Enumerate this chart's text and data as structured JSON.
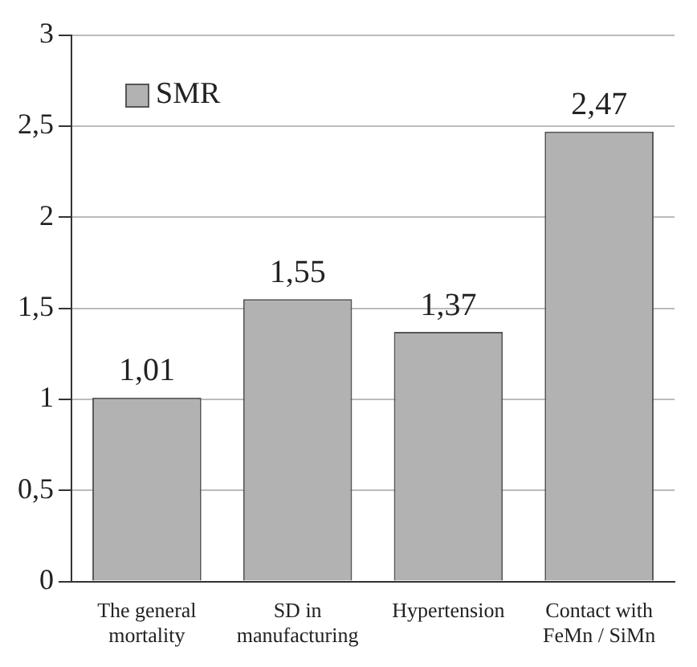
{
  "chart_data": {
    "type": "bar",
    "categories": [
      "The general mortality",
      "SD in manufacturing",
      "Hypertension",
      "Contact with FeMn / SiMn"
    ],
    "series": [
      {
        "name": "SMR",
        "color": "#b2b2b2",
        "values": [
          1.01,
          1.55,
          1.37,
          2.47
        ],
        "value_labels": [
          "1,01",
          "1,55",
          "1,37",
          "2,47"
        ]
      }
    ],
    "ylim": [
      0,
      3
    ],
    "yticks": [
      0,
      {
        "value": 0.5,
        "label": "0,5"
      },
      1,
      {
        "value": 1.5,
        "label": "1,5"
      },
      2,
      {
        "value": 2.5,
        "label": "2,5"
      },
      3
    ],
    "grid": "y",
    "legend": "top left"
  }
}
